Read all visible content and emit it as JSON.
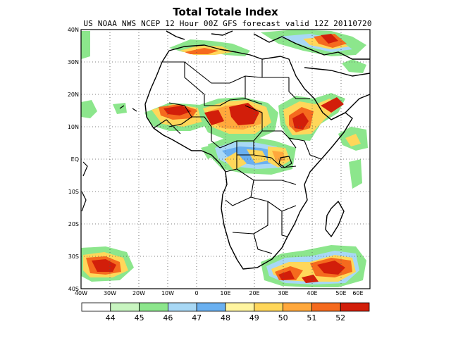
{
  "title": "Total Totale Index",
  "subtitle": "US NOAA NWS NCEP 12 Hour 00Z GFS forecast valid 12Z 20110720",
  "lat_labels": [
    "40N",
    "30N",
    "20N",
    "10N",
    "EQ",
    "10S",
    "20S",
    "30S",
    "40S"
  ],
  "lon_labels": [
    "40W",
    "30W",
    "20W",
    "10W",
    "0",
    "10E",
    "20E",
    "30E",
    "40E",
    "50E",
    "60E"
  ],
  "colorbar": {
    "labels": [
      "44",
      "45",
      "46",
      "47",
      "48",
      "49",
      "50",
      "51",
      "52"
    ],
    "colors": [
      "#ffffff",
      "#c8f5c0",
      "#8ce68c",
      "#a8d8f5",
      "#6ab0f0",
      "#fff5a0",
      "#ffd75a",
      "#ffa83c",
      "#f56a1e",
      "#d21e0a"
    ]
  },
  "map": {
    "grid": "dotted",
    "land_color": "#ffffff",
    "border_color": "#000000"
  }
}
